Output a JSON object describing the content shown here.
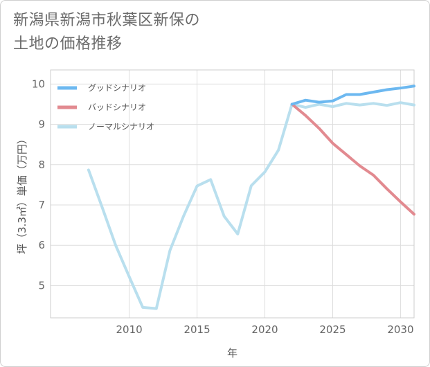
{
  "title_lines": [
    "新潟県新潟市秋葉区新保の",
    "土地の価格推移"
  ],
  "chart_data": {
    "type": "line",
    "xlabel": "年",
    "ylabel": "坪（3.3㎡）単価（万円）",
    "xlim": [
      2004.2,
      2031
    ],
    "ylim": [
      4.2,
      10.35
    ],
    "x_ticks": [
      2010,
      2015,
      2020,
      2025,
      2030
    ],
    "y_ticks": [
      5,
      6,
      7,
      8,
      9,
      10
    ],
    "grid": true,
    "legend_position": "top-left",
    "series": [
      {
        "name": "グッドシナリオ",
        "color": "#6cb8f0",
        "x": [
          2022,
          2023,
          2024,
          2025,
          2026,
          2027,
          2028,
          2029,
          2030,
          2031
        ],
        "y": [
          9.5,
          9.6,
          9.55,
          9.58,
          9.74,
          9.74,
          9.8,
          9.86,
          9.9,
          9.95
        ]
      },
      {
        "name": "バッドシナリオ",
        "color": "#e28a90",
        "x": [
          2022,
          2023,
          2024,
          2025,
          2026,
          2027,
          2028,
          2029,
          2030,
          2031
        ],
        "y": [
          9.5,
          9.22,
          8.9,
          8.53,
          8.25,
          7.97,
          7.74,
          7.4,
          7.08,
          6.77
        ]
      },
      {
        "name": "ノーマルシナリオ",
        "color": "#b9dfee",
        "x": [
          2007,
          2008,
          2009,
          2010,
          2011,
          2012,
          2013,
          2014,
          2015,
          2016,
          2017,
          2018,
          2019,
          2020,
          2021,
          2022,
          2023,
          2024,
          2025,
          2026,
          2027,
          2028,
          2029,
          2030,
          2031
        ],
        "y": [
          7.87,
          6.95,
          6.0,
          5.22,
          4.46,
          4.43,
          5.87,
          6.72,
          7.47,
          7.63,
          6.72,
          6.28,
          7.48,
          7.82,
          8.36,
          9.5,
          9.42,
          9.5,
          9.44,
          9.52,
          9.48,
          9.52,
          9.47,
          9.54,
          9.48
        ]
      }
    ]
  }
}
